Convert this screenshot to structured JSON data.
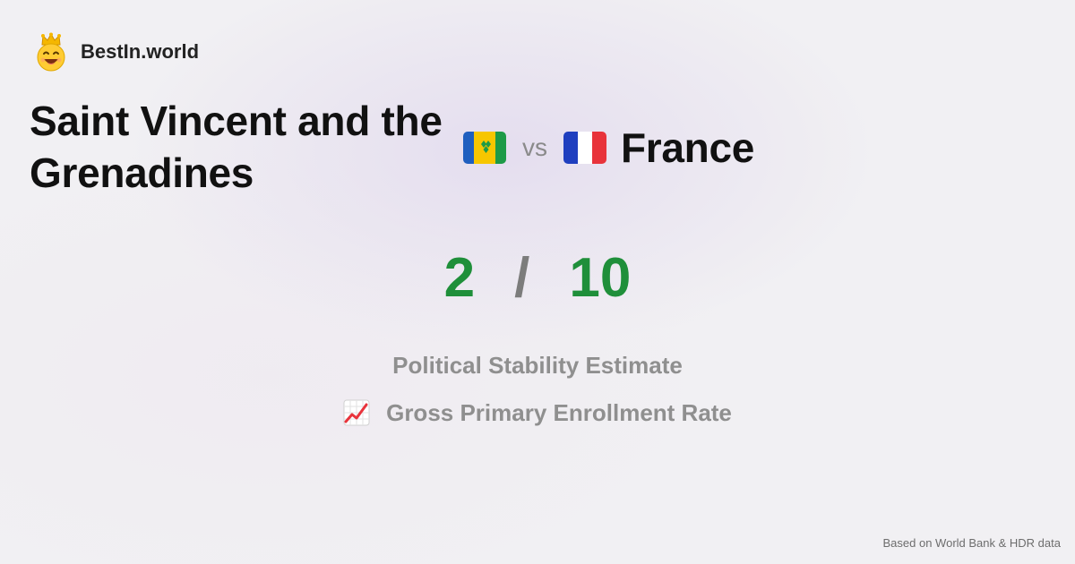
{
  "brand": {
    "name": "BestIn.world",
    "logo_icon": "crowned-smiley-icon"
  },
  "comparison": {
    "left_country": "Saint Vincent and the Grenadines",
    "left_flag": "saint-vincent-flag-icon",
    "vs_label": "vs",
    "right_country": "France",
    "right_flag": "france-flag-icon"
  },
  "scores": {
    "left": "2",
    "separator": "/",
    "right": "10",
    "score_color": "#1f8f3a"
  },
  "metrics": {
    "primary": "Political Stability Estimate",
    "secondary": "Gross Primary Enrollment Rate",
    "secondary_icon": "chart-increasing-icon"
  },
  "footer": {
    "source": "Based on World Bank & HDR data"
  }
}
